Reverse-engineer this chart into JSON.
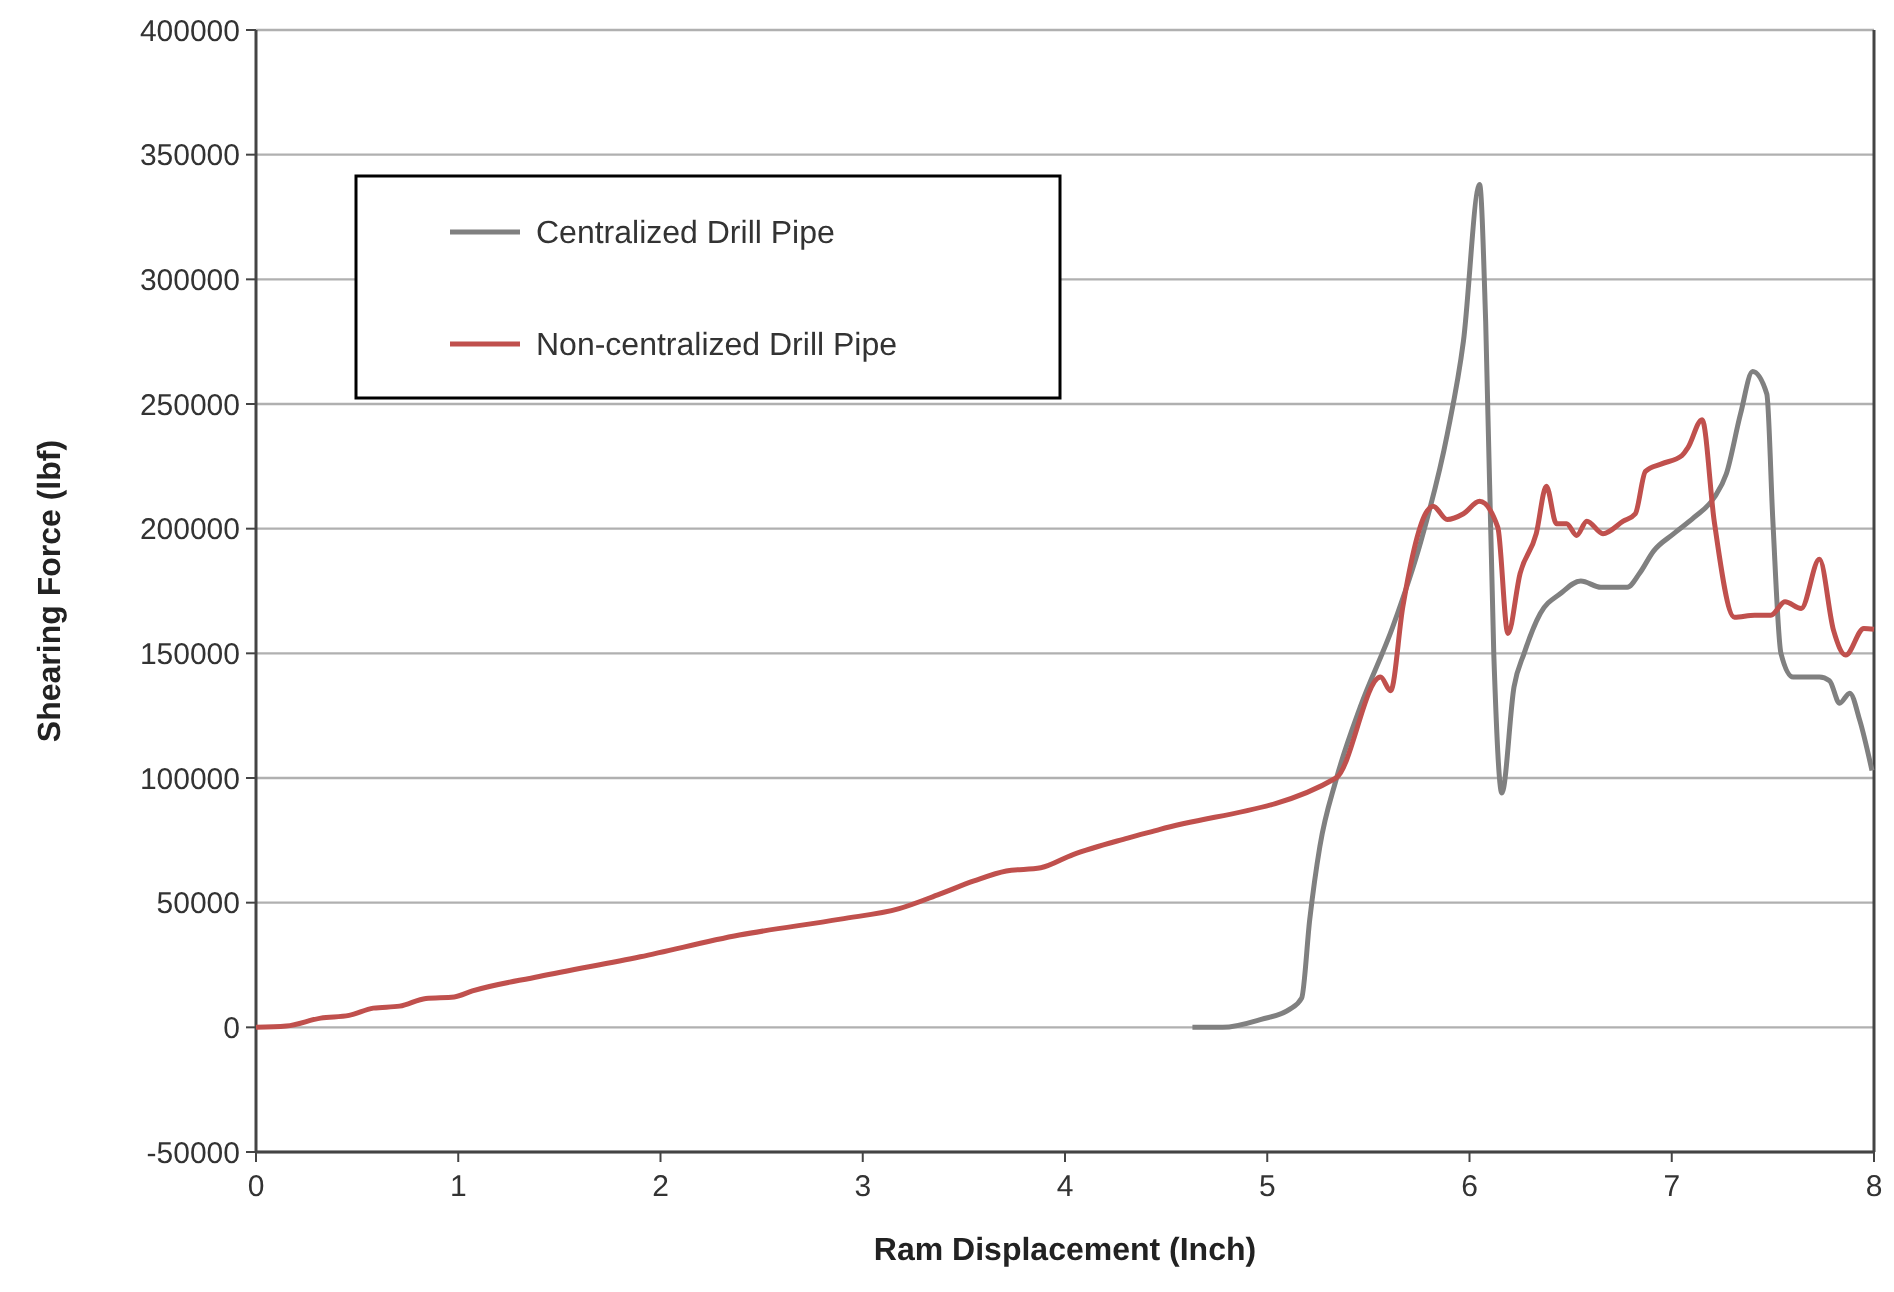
{
  "chart_data": {
    "type": "line",
    "xlabel": "Ram Displacement (Inch)",
    "ylabel": "Shearing Force (lbf)",
    "xlim": [
      0,
      8
    ],
    "xticks": [
      0,
      1,
      2,
      3,
      4,
      5,
      6,
      7,
      8
    ],
    "ylim": [
      -50000,
      400000
    ],
    "yticks": [
      -50000,
      0,
      50000,
      100000,
      150000,
      200000,
      250000,
      300000,
      350000,
      400000
    ],
    "grid": "y",
    "legend": "top left",
    "marker": "none",
    "line_style": "solid",
    "series": [
      {
        "name": "Centralized Drill Pipe",
        "color": "#808080",
        "x": [
          4.63,
          4.78,
          4.97,
          5.11,
          5.17,
          5.21,
          5.26,
          5.34,
          5.46,
          5.62,
          5.76,
          5.89,
          5.97,
          6.05,
          6.08,
          6.12,
          6.16,
          6.22,
          6.27,
          6.35,
          6.45,
          6.55,
          6.65,
          6.78,
          6.84,
          6.91,
          7.01,
          7.11,
          7.21,
          7.27,
          7.34,
          7.4,
          7.47,
          7.5,
          7.54,
          7.6,
          7.68,
          7.73,
          7.78,
          7.83,
          7.88,
          7.93,
          7.99
        ],
        "values": [
          0,
          0,
          3200,
          7200,
          11700,
          43200,
          72500,
          99200,
          128500,
          160500,
          195000,
          237900,
          275200,
          338000,
          283000,
          150000,
          94000,
          136500,
          150000,
          166000,
          174000,
          179000,
          176500,
          176500,
          182000,
          191000,
          198000,
          204500,
          212500,
          222000,
          246000,
          263000,
          254000,
          203000,
          150000,
          140500,
          140500,
          140500,
          139000,
          130000,
          134000,
          123000,
          103000
        ]
      },
      {
        "name": "Non-centralized Drill Pipe",
        "color": "#c0504d",
        "x": [
          0,
          0.15,
          0.32,
          0.46,
          0.58,
          0.71,
          0.84,
          0.98,
          1.07,
          1.4,
          1.9,
          2.39,
          2.89,
          3.18,
          3.38,
          3.55,
          3.71,
          3.88,
          4.04,
          4.31,
          4.47,
          5.34,
          5.56,
          5.61,
          5.67,
          5.79,
          5.82,
          5.89,
          5.97,
          6.05,
          6.14,
          6.19,
          6.25,
          6.33,
          6.38,
          6.43,
          6.48,
          6.53,
          6.58,
          6.66,
          6.76,
          6.82,
          6.87,
          6.95,
          7.05,
          7.08,
          7.15,
          7.21,
          7.31,
          7.41,
          7.49,
          7.56,
          7.64,
          7.73,
          7.8,
          7.86,
          7.95,
          8
        ],
        "values": [
          0,
          500,
          3700,
          4800,
          7700,
          8500,
          11600,
          12200,
          14600,
          20400,
          28300,
          37000,
          43400,
          47600,
          53400,
          58700,
          62700,
          64000,
          69300,
          75900,
          79400,
          100000,
          140500,
          135000,
          168500,
          207000,
          209000,
          203700,
          206000,
          211000,
          200500,
          158000,
          182000,
          198000,
          217000,
          202000,
          202000,
          197300,
          203000,
          198000,
          203000,
          206000,
          223000,
          226000,
          229300,
          232500,
          243700,
          203000,
          164500,
          165300,
          165300,
          170700,
          168000,
          187700,
          159200,
          149300,
          160000,
          159700
        ]
      }
    ]
  }
}
